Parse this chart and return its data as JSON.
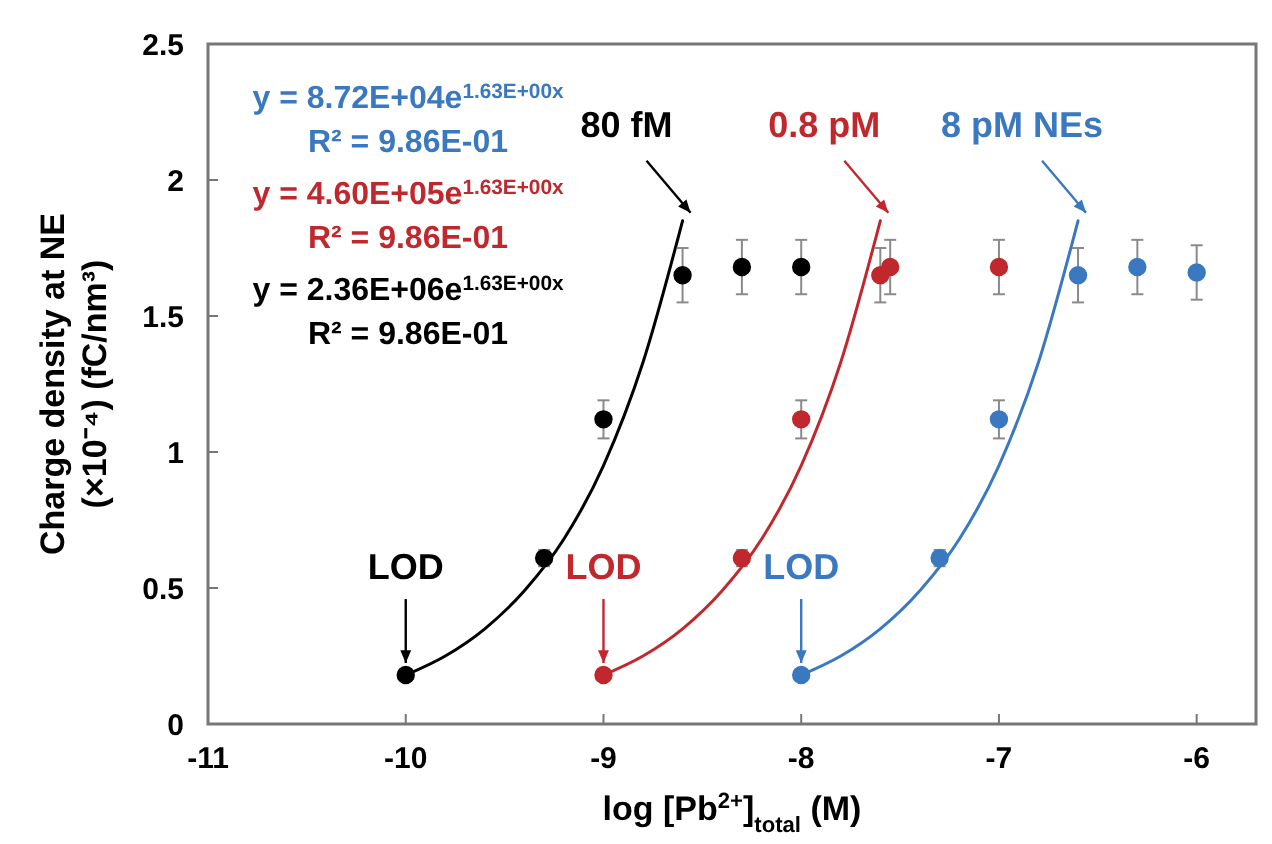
{
  "chart_data": {
    "type": "scatter",
    "xlabel": "log [Pb$^{2+}$]$_{total}$ (M)",
    "ylabel": "Charge density at NE\n(×10⁻⁴) (fC/nm³)",
    "xlim": [
      -11,
      -5.7
    ],
    "xticks": [
      -11,
      -10,
      -9,
      -8,
      -7,
      -6
    ],
    "ylim": [
      0,
      2.5
    ],
    "yticks": [
      0,
      0.5,
      1,
      1.5,
      2,
      2.5
    ],
    "grid": false,
    "marker": "circle",
    "series": [
      {
        "type": "line",
        "marker": "none",
        "color": "#3a78c0",
        "x": [
          -8,
          -7.8,
          -7.6,
          -7.4,
          -7.2,
          -7,
          -6.8,
          -6.6
        ],
        "values": [
          0.18,
          0.25,
          0.35,
          0.49,
          0.68,
          0.95,
          1.33,
          1.85
        ]
      },
      {
        "type": "line",
        "marker": "none",
        "color": "#c0282d",
        "x": [
          -9,
          -8.8,
          -8.6,
          -8.4,
          -8.2,
          -8,
          -7.8,
          -7.6
        ],
        "values": [
          0.18,
          0.25,
          0.35,
          0.49,
          0.68,
          0.95,
          1.33,
          1.85
        ]
      },
      {
        "type": "line",
        "marker": "none",
        "color": "#000000",
        "x": [
          -10,
          -9.8,
          -9.6,
          -9.4,
          -9.2,
          -9,
          -8.8,
          -8.6
        ],
        "values": [
          0.18,
          0.25,
          0.35,
          0.49,
          0.68,
          0.95,
          1.33,
          1.85
        ]
      },
      {
        "color": "#000000",
        "x": [
          -10,
          -9.3,
          -9,
          -8.6
        ],
        "values": [
          0.18,
          0.61,
          1.12,
          1.65
        ],
        "errors": [
          null,
          0.03,
          0.07,
          0.1
        ]
      },
      {
        "color": "#000000",
        "x": [
          -8.3,
          -8
        ],
        "values": [
          1.68,
          1.68
        ],
        "errors": [
          0.1,
          0.1
        ]
      },
      {
        "color": "#c0282d",
        "x": [
          -9,
          -8.3,
          -8,
          -7.6
        ],
        "values": [
          0.18,
          0.61,
          1.12,
          1.65
        ],
        "errors": [
          null,
          0.03,
          0.07,
          0.1
        ]
      },
      {
        "color": "#c0282d",
        "x": [
          -7.55,
          -7
        ],
        "values": [
          1.68,
          1.68
        ],
        "errors": [
          0.1,
          0.1
        ]
      },
      {
        "color": "#3a78c0",
        "x": [
          -8,
          -7.3,
          -7,
          -6.6
        ],
        "values": [
          0.18,
          0.61,
          1.12,
          1.65
        ],
        "errors": [
          null,
          0.03,
          0.07,
          0.1
        ]
      },
      {
        "color": "#3a78c0",
        "x": [
          -6.3,
          -6
        ],
        "values": [
          1.68,
          1.66
        ],
        "errors": [
          0.1,
          0.1
        ]
      }
    ],
    "annotations": [
      "y = 8.72E+04e$^{1.63E+00x}$\nR² = 9.86E-01",
      "y = 4.60E+05e$^{1.63E+00x}$\nR² = 9.86E-01",
      "y = 2.36E+06e$^{1.63E+00x}$\nR² = 9.86E-01",
      {
        "text": "80 fM",
        "x": -8.6,
        "y": 1.85
      },
      {
        "text": "0.8 pM",
        "x": -7.6,
        "y": 1.85
      },
      {
        "text": "8 pM NEs",
        "x": -6.6,
        "y": 1.85
      },
      {
        "text": "LOD",
        "x": -10,
        "y": 0.18
      },
      {
        "text": "LOD",
        "x": -9,
        "y": 0.18
      },
      {
        "text": "LOD",
        "x": -8,
        "y": 0.18
      }
    ]
  }
}
